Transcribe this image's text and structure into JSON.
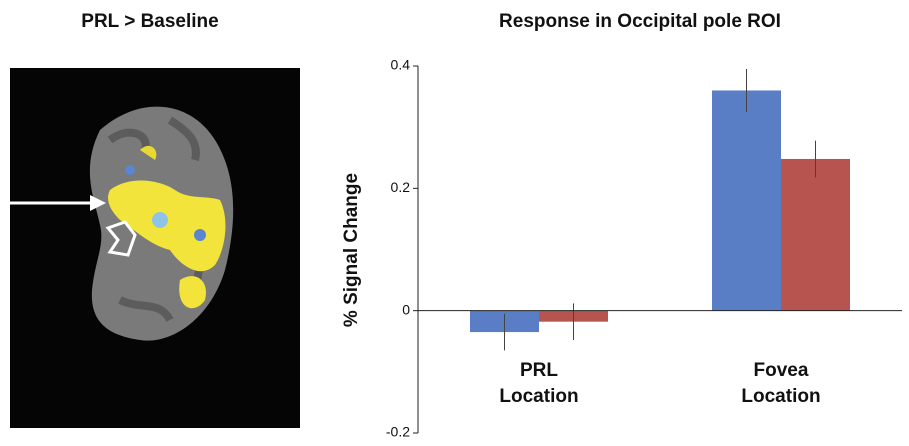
{
  "image_panel": {
    "title": "PRL > Baseline"
  },
  "chart_data": {
    "type": "bar",
    "title": "Response in Occipital pole ROI",
    "y_label": "% Signal Change",
    "categories": [
      "PRL Location",
      "Fovea Location"
    ],
    "series": [
      {
        "color": "#5a7ec6",
        "values": [
          -0.035,
          0.36
        ],
        "errors": [
          0.03,
          0.035
        ]
      },
      {
        "color": "#b85450",
        "values": [
          -0.018,
          0.248
        ],
        "errors": [
          0.03,
          0.03
        ]
      }
    ],
    "ylim": [
      -0.2,
      0.4
    ],
    "yticks": [
      -0.2,
      0,
      0.2,
      0.4
    ]
  }
}
